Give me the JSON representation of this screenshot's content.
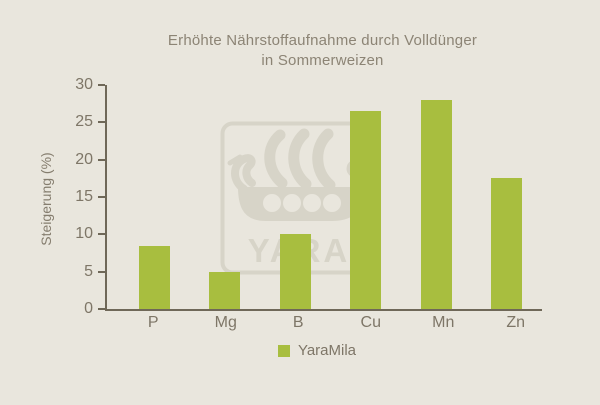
{
  "title": {
    "line1": "Erhöhte Nährstoffaufnahme durch Volldünger",
    "line2": "in Sommerweizen"
  },
  "chart_data": {
    "type": "bar",
    "title": "Erhöhte Nährstoffaufnahme durch Volldünger in Sommerweizen",
    "categories": [
      "P",
      "Mg",
      "B",
      "Cu",
      "Mn",
      "Zn"
    ],
    "series": [
      {
        "name": "YaraMila",
        "values": [
          8.5,
          5,
          10,
          26.5,
          28,
          17.5
        ]
      }
    ],
    "xlabel": "",
    "ylabel": "Steigerung (%)",
    "ylim": [
      0,
      30
    ],
    "yticks": [
      0,
      5,
      10,
      15,
      20,
      25,
      30
    ],
    "grid": false,
    "legend_position": "bottom",
    "bar_color": "#a8be3f"
  },
  "legend": {
    "label": "YaraMila",
    "swatch_color": "#a8be3f"
  },
  "watermark": {
    "text": "YARA",
    "icon": "yara-viking-ship-logo",
    "color": "#d7d4c8"
  },
  "colors": {
    "background": "#e9e6dd",
    "axis": "#6f6858",
    "text": "#7e7667",
    "title_text": "#8c8475"
  }
}
